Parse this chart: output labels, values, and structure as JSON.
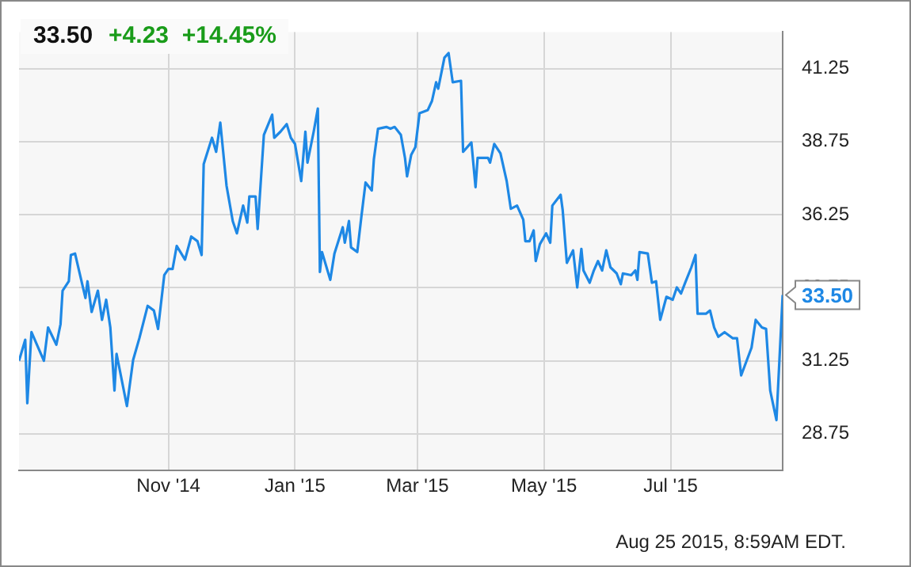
{
  "chart_data": {
    "type": "line",
    "title": "33.50",
    "subtitle": "+4.23  +14.45%",
    "x": [
      "2014-08-21",
      "2014-08-24",
      "2014-08-25",
      "2014-08-27",
      "2014-09-02",
      "2014-09-04",
      "2014-09-08",
      "2014-09-10",
      "2014-09-11",
      "2014-09-14",
      "2014-09-15",
      "2014-09-17",
      "2014-09-22",
      "2014-09-23",
      "2014-09-25",
      "2014-09-28",
      "2014-09-30",
      "2014-10-02",
      "2014-10-04",
      "2014-10-06",
      "2014-10-07",
      "2014-10-12",
      "2014-10-15",
      "2014-10-18",
      "2014-10-22",
      "2014-10-25",
      "2014-10-27",
      "2014-10-30",
      "2014-11-01",
      "2014-11-03",
      "2014-11-05",
      "2014-11-09",
      "2014-11-12",
      "2014-11-15",
      "2014-11-17",
      "2014-11-18",
      "2014-11-22",
      "2014-11-24",
      "2014-11-26",
      "2014-11-29",
      "2014-12-02",
      "2014-12-04",
      "2014-12-07",
      "2014-12-09",
      "2014-12-10",
      "2014-12-13",
      "2014-12-14",
      "2014-12-17",
      "2014-12-21",
      "2014-12-22",
      "2014-12-25",
      "2014-12-28",
      "2014-12-30",
      "2015-01-01",
      "2015-01-04",
      "2015-01-06",
      "2015-01-07",
      "2015-01-10",
      "2015-01-12",
      "2015-01-13",
      "2015-01-14",
      "2015-01-18",
      "2015-01-20",
      "2015-01-24",
      "2015-01-25",
      "2015-01-27",
      "2015-01-28",
      "2015-01-31",
      "2015-02-02",
      "2015-02-04",
      "2015-02-07",
      "2015-02-08",
      "2015-02-10",
      "2015-02-14",
      "2015-02-16",
      "2015-02-18",
      "2015-02-21",
      "2015-02-23",
      "2015-02-24",
      "2015-02-26",
      "2015-02-28",
      "2015-03-02",
      "2015-03-06",
      "2015-03-08",
      "2015-03-10",
      "2015-03-11",
      "2015-03-14",
      "2015-03-16",
      "2015-03-18",
      "2015-03-22",
      "2015-03-23",
      "2015-03-27",
      "2015-03-29",
      "2015-03-30",
      "2015-04-04",
      "2015-04-05",
      "2015-04-07",
      "2015-04-10",
      "2015-04-13",
      "2015-04-15",
      "2015-04-18",
      "2015-04-21",
      "2015-04-22",
      "2015-04-24",
      "2015-04-26",
      "2015-04-27",
      "2015-04-29",
      "2015-05-02",
      "2015-05-04",
      "2015-05-05",
      "2015-05-09",
      "2015-05-10",
      "2015-05-12",
      "2015-05-15",
      "2015-05-17",
      "2015-05-19",
      "2015-05-20",
      "2015-05-23",
      "2015-05-25",
      "2015-05-27",
      "2015-05-29",
      "2015-05-31",
      "2015-06-02",
      "2015-06-05",
      "2015-06-07",
      "2015-06-08",
      "2015-06-12",
      "2015-06-14",
      "2015-06-15",
      "2015-06-16",
      "2015-06-20",
      "2015-06-22",
      "2015-06-24",
      "2015-06-26",
      "2015-06-29",
      "2015-07-02",
      "2015-07-04",
      "2015-07-06",
      "2015-07-08",
      "2015-07-11",
      "2015-07-13",
      "2015-07-14",
      "2015-07-18",
      "2015-07-20",
      "2015-07-22",
      "2015-07-24",
      "2015-07-27",
      "2015-07-31",
      "2015-08-02",
      "2015-08-04",
      "2015-08-09",
      "2015-08-11",
      "2015-08-14",
      "2015-08-16",
      "2015-08-18",
      "2015-08-21",
      "2015-08-24"
    ],
    "values": [
      31.25,
      31.97,
      29.8,
      32.23,
      31.25,
      32.39,
      31.8,
      32.5,
      33.65,
      33.97,
      34.87,
      34.92,
      33.4,
      33.97,
      32.92,
      33.65,
      32.65,
      33.34,
      32.39,
      30.23,
      31.49,
      29.7,
      31.28,
      32.02,
      33.13,
      32.97,
      32.34,
      34.18,
      34.39,
      34.39,
      35.18,
      34.71,
      35.5,
      35.34,
      34.87,
      37.98,
      38.88,
      38.4,
      39.4,
      37.24,
      36.03,
      35.61,
      36.56,
      35.98,
      36.87,
      36.87,
      35.76,
      38.98,
      39.67,
      38.88,
      39.09,
      39.35,
      38.88,
      38.67,
      37.4,
      39.09,
      38.03,
      39.09,
      39.88,
      34.29,
      34.97,
      34.02,
      34.92,
      35.82,
      35.29,
      36.03,
      35.13,
      34.97,
      36.19,
      37.35,
      37.08,
      38.14,
      39.19,
      39.25,
      39.19,
      39.25,
      38.98,
      38.19,
      37.56,
      38.3,
      38.56,
      39.72,
      39.83,
      40.14,
      40.78,
      40.56,
      41.62,
      41.78,
      40.78,
      40.83,
      38.4,
      38.72,
      37.19,
      38.19,
      38.19,
      38.03,
      38.67,
      38.35,
      37.4,
      36.45,
      36.56,
      36.08,
      35.34,
      35.34,
      35.71,
      34.66,
      35.24,
      35.61,
      35.29,
      36.56,
      36.93,
      36.4,
      34.6,
      35.03,
      33.76,
      35.08,
      34.34,
      33.92,
      34.34,
      34.66,
      34.34,
      35.03,
      34.45,
      34.24,
      33.87,
      34.24,
      34.18,
      34.34,
      34.02,
      34.97,
      34.92,
      33.92,
      33.97,
      32.65,
      33.44,
      33.34,
      33.76,
      33.55,
      33.92,
      34.45,
      34.87,
      32.86,
      32.86,
      32.97,
      32.39,
      32.07,
      32.23,
      32.02,
      32.02,
      30.75,
      31.7,
      32.65,
      32.39,
      32.34,
      30.23,
      29.22,
      33.5
    ],
    "color": "#1e88e5",
    "xlim": [
      "2014-08-21",
      "2015-08-24"
    ],
    "xticks": [
      {
        "value": "2014-11-01",
        "label": "Nov '14"
      },
      {
        "value": "2015-01-01",
        "label": "Jan '15"
      },
      {
        "value": "2015-03-01",
        "label": "Mar '15"
      },
      {
        "value": "2015-05-01",
        "label": "May '15"
      },
      {
        "value": "2015-07-01",
        "label": "Jul '15"
      }
    ],
    "ylim": [
      27.5,
      42.5
    ],
    "yticks": [
      28.75,
      31.25,
      33.75,
      36.25,
      38.75,
      41.25
    ],
    "grid": true,
    "marker": "none",
    "annotations": [
      {
        "text": "33.50",
        "x": "2015-08-24",
        "y": 33.5
      },
      "Aug 25 2015, 8:59AM EDT."
    ]
  }
}
